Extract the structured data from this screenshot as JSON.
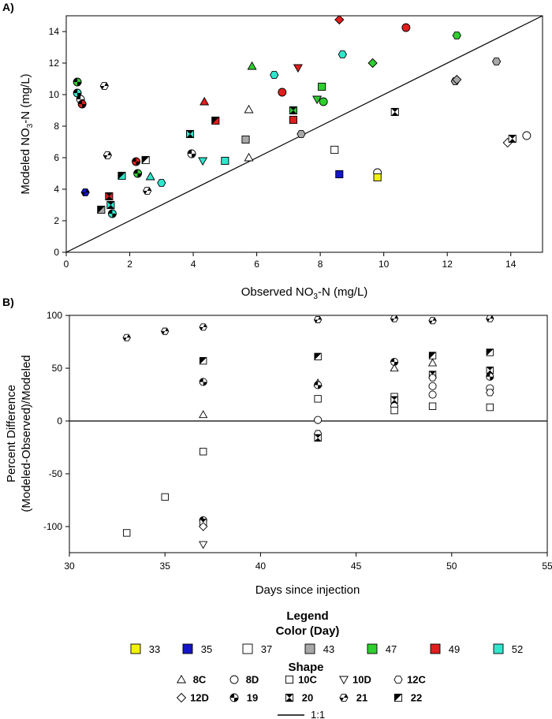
{
  "panelA": {
    "label": "A)",
    "xlabel_main": "Observed NO",
    "xlabel_sub": "3",
    "xlabel_tail": "-N (mg/L)",
    "ylabel_main": "Modeled NO",
    "ylabel_sub": "3",
    "ylabel_tail": "-N (mg/L)"
  },
  "panelB": {
    "label": "B)",
    "xlabel": "Days since injection",
    "ylabel_line1": "Percent Difference",
    "ylabel_line2": "(Modeled-Observed)/Modeled"
  },
  "legend": {
    "title_line1": "Legend",
    "title_line2": "Color (Day)",
    "shape_title": "Shape",
    "line_label": "1:1",
    "colors": [
      {
        "label": "33",
        "hex": "#f2f20a"
      },
      {
        "label": "35",
        "hex": "#1414c8"
      },
      {
        "label": "37",
        "hex": "#ffffff"
      },
      {
        "label": "43",
        "hex": "#a8a8a8"
      },
      {
        "label": "47",
        "hex": "#2fcf2f"
      },
      {
        "label": "49",
        "hex": "#e01e1e"
      },
      {
        "label": "52",
        "hex": "#30e6cc"
      }
    ],
    "shapes": [
      {
        "label": "8C",
        "shape": "triangle-up"
      },
      {
        "label": "8D",
        "shape": "circle"
      },
      {
        "label": "10C",
        "shape": "square"
      },
      {
        "label": "10D",
        "shape": "triangle-down"
      },
      {
        "label": "12C",
        "shape": "hexagon"
      },
      {
        "label": "12D",
        "shape": "diamond"
      },
      {
        "label": "19",
        "shape": "circle-checker"
      },
      {
        "label": "20",
        "shape": "square-hourglass"
      },
      {
        "label": "21",
        "shape": "hexagon-checker"
      },
      {
        "label": "22",
        "shape": "square-diagonal"
      }
    ]
  },
  "chart_data": [
    {
      "type": "scatter",
      "title": "A)",
      "xlabel": "Observed NO3-N (mg/L)",
      "ylabel": "Modeled NO3-N (mg/L)",
      "xlim": [
        0,
        15
      ],
      "ylim": [
        0,
        15
      ],
      "xticks": [
        0,
        2,
        4,
        6,
        8,
        10,
        12,
        14
      ],
      "yticks": [
        0,
        2,
        4,
        6,
        8,
        10,
        12,
        14
      ],
      "reference_line": "1:1",
      "points": [
        {
          "x": 0.35,
          "y": 10.8,
          "color": "47",
          "shape": "19"
        },
        {
          "x": 0.35,
          "y": 10.1,
          "color": "52",
          "shape": "19"
        },
        {
          "x": 0.45,
          "y": 9.7,
          "color": "37",
          "shape": "19"
        },
        {
          "x": 0.5,
          "y": 9.4,
          "color": "49",
          "shape": "19"
        },
        {
          "x": 0.6,
          "y": 3.8,
          "color": "35",
          "shape": "21"
        },
        {
          "x": 1.1,
          "y": 2.7,
          "color": "43",
          "shape": "22"
        },
        {
          "x": 1.2,
          "y": 10.55,
          "color": "37",
          "shape": "21"
        },
        {
          "x": 1.3,
          "y": 6.15,
          "color": "37",
          "shape": "21"
        },
        {
          "x": 1.35,
          "y": 3.55,
          "color": "49",
          "shape": "20"
        },
        {
          "x": 1.4,
          "y": 3.0,
          "color": "52",
          "shape": "20"
        },
        {
          "x": 1.45,
          "y": 2.45,
          "color": "52",
          "shape": "19"
        },
        {
          "x": 1.75,
          "y": 4.85,
          "color": "52",
          "shape": "22"
        },
        {
          "x": 2.2,
          "y": 5.75,
          "color": "49",
          "shape": "19"
        },
        {
          "x": 2.25,
          "y": 5.0,
          "color": "47",
          "shape": "19"
        },
        {
          "x": 2.5,
          "y": 5.85,
          "color": "37",
          "shape": "22"
        },
        {
          "x": 2.55,
          "y": 3.9,
          "color": "37",
          "shape": "21"
        },
        {
          "x": 2.65,
          "y": 4.8,
          "color": "52",
          "shape": "8C"
        },
        {
          "x": 3.0,
          "y": 4.4,
          "color": "52",
          "shape": "12C"
        },
        {
          "x": 3.9,
          "y": 7.5,
          "color": "52",
          "shape": "20"
        },
        {
          "x": 3.95,
          "y": 6.25,
          "color": "37",
          "shape": "19"
        },
        {
          "x": 4.3,
          "y": 5.8,
          "color": "52",
          "shape": "10D"
        },
        {
          "x": 4.35,
          "y": 9.55,
          "color": "49",
          "shape": "8C"
        },
        {
          "x": 4.7,
          "y": 8.35,
          "color": "49",
          "shape": "22"
        },
        {
          "x": 5.0,
          "y": 5.8,
          "color": "52",
          "shape": "10C"
        },
        {
          "x": 5.65,
          "y": 7.15,
          "color": "43",
          "shape": "10C"
        },
        {
          "x": 5.75,
          "y": 9.05,
          "color": "37",
          "shape": "8C"
        },
        {
          "x": 5.75,
          "y": 6.0,
          "color": "37",
          "shape": "8C"
        },
        {
          "x": 5.85,
          "y": 11.8,
          "color": "47",
          "shape": "8C"
        },
        {
          "x": 6.55,
          "y": 11.25,
          "color": "52",
          "shape": "12C"
        },
        {
          "x": 6.8,
          "y": 10.15,
          "color": "49",
          "shape": "8D"
        },
        {
          "x": 7.15,
          "y": 9.0,
          "color": "47",
          "shape": "20"
        },
        {
          "x": 7.15,
          "y": 8.4,
          "color": "49",
          "shape": "10C"
        },
        {
          "x": 7.3,
          "y": 11.7,
          "color": "49",
          "shape": "10D"
        },
        {
          "x": 7.4,
          "y": 7.5,
          "color": "43",
          "shape": "12C"
        },
        {
          "x": 7.9,
          "y": 9.7,
          "color": "47",
          "shape": "10D"
        },
        {
          "x": 8.05,
          "y": 10.5,
          "color": "47",
          "shape": "10C"
        },
        {
          "x": 8.1,
          "y": 9.55,
          "color": "47",
          "shape": "8D"
        },
        {
          "x": 8.45,
          "y": 6.5,
          "color": "37",
          "shape": "10C"
        },
        {
          "x": 8.6,
          "y": 14.75,
          "color": "49",
          "shape": "12D"
        },
        {
          "x": 8.6,
          "y": 4.95,
          "color": "35",
          "shape": "10C"
        },
        {
          "x": 8.7,
          "y": 12.55,
          "color": "52",
          "shape": "12C"
        },
        {
          "x": 9.65,
          "y": 12.0,
          "color": "47",
          "shape": "12D"
        },
        {
          "x": 9.8,
          "y": 5.05,
          "color": "37",
          "shape": "8D"
        },
        {
          "x": 9.8,
          "y": 4.75,
          "color": "33",
          "shape": "10C"
        },
        {
          "x": 10.35,
          "y": 8.9,
          "color": "37",
          "shape": "20"
        },
        {
          "x": 10.7,
          "y": 14.25,
          "color": "49",
          "shape": "8D"
        },
        {
          "x": 12.25,
          "y": 10.85,
          "color": "43",
          "shape": "12C"
        },
        {
          "x": 12.3,
          "y": 10.95,
          "color": "43",
          "shape": "12D"
        },
        {
          "x": 12.3,
          "y": 13.75,
          "color": "47",
          "shape": "12C"
        },
        {
          "x": 13.55,
          "y": 12.1,
          "color": "43",
          "shape": "12C"
        },
        {
          "x": 13.9,
          "y": 6.95,
          "color": "37",
          "shape": "12D"
        },
        {
          "x": 14.05,
          "y": 7.2,
          "color": "37",
          "shape": "20"
        },
        {
          "x": 14.5,
          "y": 7.4,
          "color": "37",
          "shape": "8D"
        }
      ]
    },
    {
      "type": "scatter",
      "title": "B)",
      "xlabel": "Days since injection",
      "ylabel": "Percent Difference (Modeled-Observed)/Modeled",
      "xlim": [
        30,
        55
      ],
      "ylim": [
        -125,
        100
      ],
      "xticks": [
        30,
        35,
        40,
        45,
        50,
        55
      ],
      "yticks": [
        -100,
        -50,
        0,
        50,
        100
      ],
      "zero_line": 0,
      "points": [
        {
          "x": 33,
          "y": 79,
          "shape": "21"
        },
        {
          "x": 33,
          "y": -106,
          "shape": "10C"
        },
        {
          "x": 35,
          "y": 85,
          "shape": "21"
        },
        {
          "x": 35,
          "y": -72,
          "shape": "10C"
        },
        {
          "x": 37,
          "y": 89,
          "shape": "21"
        },
        {
          "x": 37,
          "y": 57,
          "shape": "22"
        },
        {
          "x": 37,
          "y": 37,
          "shape": "19"
        },
        {
          "x": 37,
          "y": 6,
          "shape": "8C"
        },
        {
          "x": 37,
          "y": -29,
          "shape": "10C"
        },
        {
          "x": 37,
          "y": -94,
          "shape": "19"
        },
        {
          "x": 37,
          "y": -96,
          "shape": "20"
        },
        {
          "x": 37,
          "y": -100,
          "shape": "12D"
        },
        {
          "x": 37,
          "y": -117,
          "shape": "10D"
        },
        {
          "x": 43,
          "y": 96,
          "shape": "21"
        },
        {
          "x": 43,
          "y": 61,
          "shape": "22"
        },
        {
          "x": 43,
          "y": 36,
          "shape": "8C"
        },
        {
          "x": 43,
          "y": 34,
          "shape": "19"
        },
        {
          "x": 43,
          "y": 21,
          "shape": "10C"
        },
        {
          "x": 43,
          "y": 1,
          "shape": "8D"
        },
        {
          "x": 43,
          "y": -12,
          "shape": "12C"
        },
        {
          "x": 43,
          "y": -16,
          "shape": "20"
        },
        {
          "x": 47,
          "y": 97,
          "shape": "21"
        },
        {
          "x": 47,
          "y": 56,
          "shape": "19"
        },
        {
          "x": 47,
          "y": 50,
          "shape": "8C"
        },
        {
          "x": 47,
          "y": 23,
          "shape": "10C"
        },
        {
          "x": 47,
          "y": 20,
          "shape": "20"
        },
        {
          "x": 47,
          "y": 14,
          "shape": "8D"
        },
        {
          "x": 47,
          "y": 10,
          "shape": "10C"
        },
        {
          "x": 49,
          "y": 95,
          "shape": "21"
        },
        {
          "x": 49,
          "y": 62,
          "shape": "22"
        },
        {
          "x": 49,
          "y": 55,
          "shape": "8C"
        },
        {
          "x": 49,
          "y": 44,
          "shape": "20"
        },
        {
          "x": 49,
          "y": 41,
          "shape": "12C"
        },
        {
          "x": 49,
          "y": 33,
          "shape": "8D"
        },
        {
          "x": 49,
          "y": 25,
          "shape": "8D"
        },
        {
          "x": 49,
          "y": 14,
          "shape": "10C"
        },
        {
          "x": 52,
          "y": 97,
          "shape": "21"
        },
        {
          "x": 52,
          "y": 65,
          "shape": "22"
        },
        {
          "x": 52,
          "y": 48,
          "shape": "20"
        },
        {
          "x": 52,
          "y": 42,
          "shape": "19"
        },
        {
          "x": 52,
          "y": 31,
          "shape": "8D"
        },
        {
          "x": 52,
          "y": 27,
          "shape": "12C"
        },
        {
          "x": 52,
          "y": 13,
          "shape": "10C"
        }
      ]
    }
  ]
}
